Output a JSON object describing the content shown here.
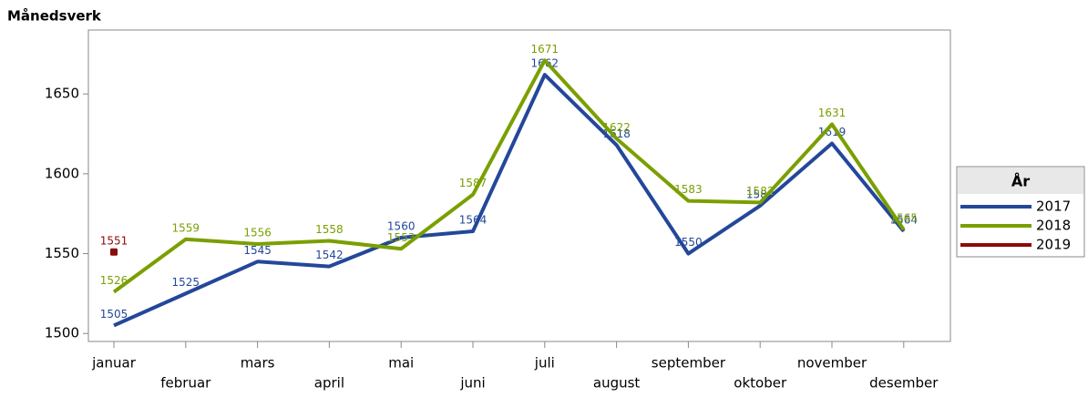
{
  "chart_data": {
    "type": "line",
    "title": "Månedsverk",
    "categories": [
      "januar",
      "februar",
      "mars",
      "april",
      "mai",
      "juni",
      "juli",
      "august",
      "september",
      "oktober",
      "november",
      "desember"
    ],
    "series": [
      {
        "name": "2017",
        "color": "#23479a",
        "values": [
          1505,
          1525,
          1545,
          1542,
          1560,
          1564,
          1662,
          1618,
          1550,
          1580,
          1619,
          1564
        ]
      },
      {
        "name": "2018",
        "color": "#7a9f00",
        "values": [
          1526,
          1559,
          1556,
          1558,
          1553,
          1587,
          1671,
          1622,
          1583,
          1582,
          1631,
          1565
        ]
      },
      {
        "name": "2019",
        "color": "#8b0a0a",
        "values": [
          1551,
          null,
          null,
          null,
          null,
          null,
          null,
          null,
          null,
          null,
          null,
          null
        ]
      }
    ],
    "ylim": [
      1495,
      1690
    ],
    "yticks": [
      1500,
      1550,
      1600,
      1650
    ],
    "legend_title": "År",
    "legend": "right",
    "grid": false
  }
}
